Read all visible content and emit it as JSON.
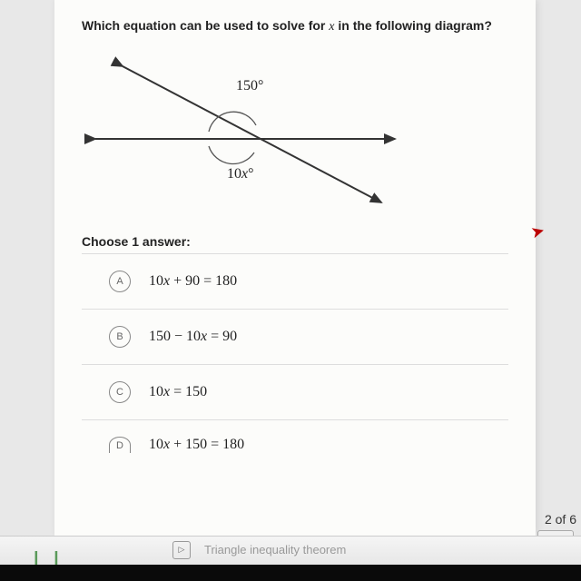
{
  "question": {
    "prefix": "Which equation can be used to solve for ",
    "variable": "x",
    "suffix": " in the following diagram?"
  },
  "diagram": {
    "angle_top": "150°",
    "angle_bottom_prefix": "10",
    "angle_bottom_var": "x",
    "angle_bottom_suffix": "°",
    "line_color": "#333333",
    "arc_color": "#555555"
  },
  "prompt": "Choose 1 answer:",
  "choices": [
    {
      "letter": "A",
      "expr_html": "10<span class='var'>x</span> + 90 = 180"
    },
    {
      "letter": "B",
      "expr_html": "150 − 10<span class='var'>x</span> = 90"
    },
    {
      "letter": "C",
      "expr_html": "10<span class='var'>x</span> = 150"
    },
    {
      "letter": "D",
      "expr_html": "10<span class='var'>x</span> + 150 = 180"
    }
  ],
  "progress": "2 of 6",
  "footer": {
    "next_topic": "Triangle inequality theorem"
  }
}
